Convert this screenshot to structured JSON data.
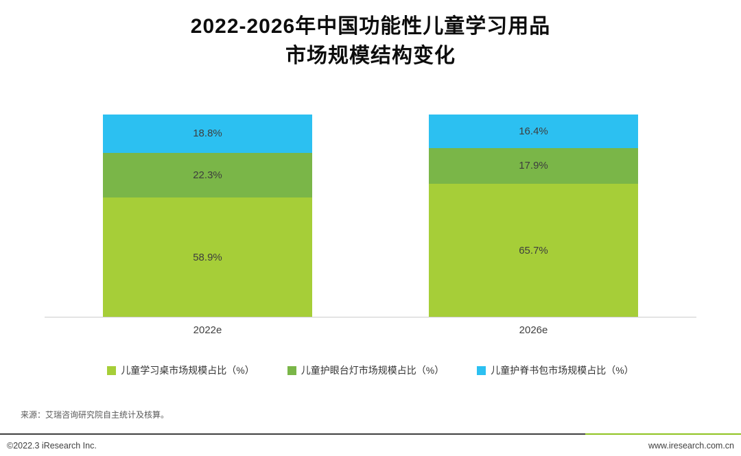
{
  "title": {
    "line1": "2022-2026年中国功能性儿童学习用品",
    "line2": "市场规模结构变化"
  },
  "chart_data": {
    "type": "bar",
    "stacked": true,
    "value_unit": "%",
    "categories": [
      "2022e",
      "2026e"
    ],
    "series": [
      {
        "name": "儿童学习桌市场规模占比（%）",
        "color": "#a6ce38",
        "values": [
          58.9,
          65.7
        ]
      },
      {
        "name": "儿童护眼台灯市场规模占比（%）",
        "color": "#7ab648",
        "values": [
          22.3,
          17.9
        ]
      },
      {
        "name": "儿童护脊书包市场规模占比（%）",
        "color": "#2cc0f1",
        "values": [
          18.8,
          16.4
        ]
      }
    ],
    "ylim": [
      0,
      100
    ],
    "grid": false,
    "legend_position": "bottom",
    "value_labels_shown": true
  },
  "source_note": "来源：艾瑞咨询研究院自主统计及核算。",
  "footer": {
    "copyright": "©2022.3 iResearch Inc.",
    "website": "www.iresearch.com.cn",
    "accent_color": "#8fc320"
  }
}
